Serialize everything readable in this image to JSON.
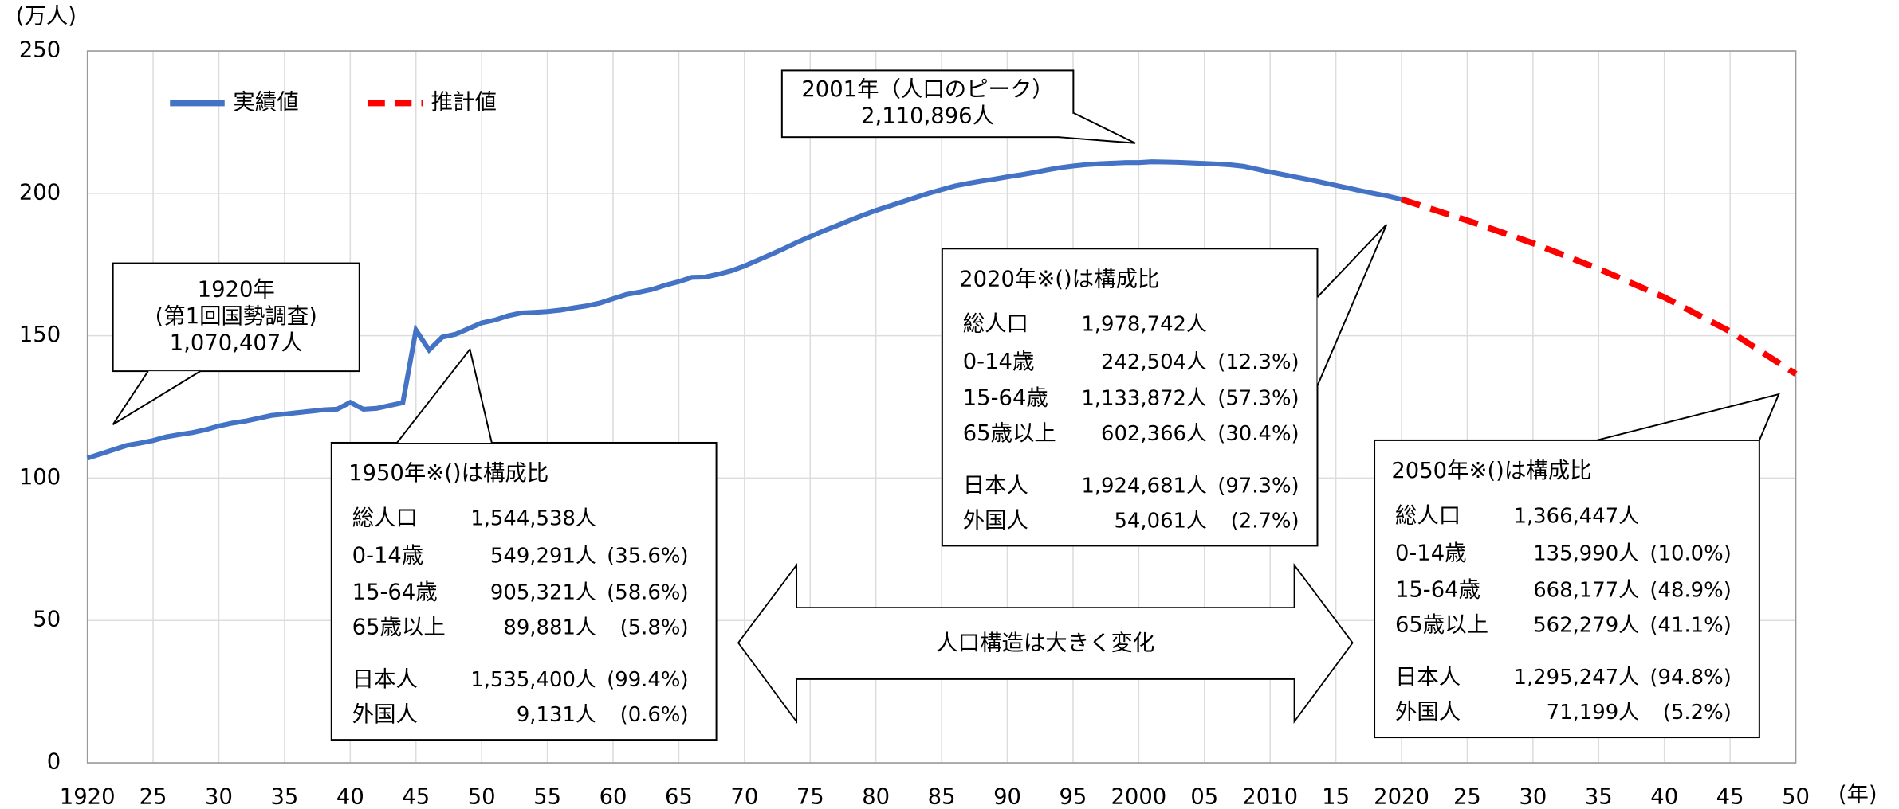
{
  "chart_data": {
    "type": "line",
    "x_label": "(年)",
    "y_label": "(万人)",
    "xlim": [
      1920,
      2050
    ],
    "ylim": [
      0,
      250
    ],
    "yticks": [
      0,
      50,
      100,
      150,
      200,
      250
    ],
    "xticks": [
      1920,
      {
        "value": 1925,
        "label": "25"
      },
      {
        "value": 1930,
        "label": "30"
      },
      {
        "value": 1935,
        "label": "35"
      },
      {
        "value": 1940,
        "label": "40"
      },
      {
        "value": 1945,
        "label": "45"
      },
      {
        "value": 1950,
        "label": "50"
      },
      {
        "value": 1955,
        "label": "55"
      },
      {
        "value": 1960,
        "label": "60"
      },
      {
        "value": 1965,
        "label": "65"
      },
      {
        "value": 1970,
        "label": "70"
      },
      {
        "value": 1975,
        "label": "75"
      },
      {
        "value": 1980,
        "label": "80"
      },
      {
        "value": 1985,
        "label": "85"
      },
      {
        "value": 1990,
        "label": "90"
      },
      {
        "value": 1995,
        "label": "95"
      },
      2000,
      {
        "value": 2005,
        "label": "05"
      },
      2010,
      {
        "value": 2015,
        "label": "15"
      },
      2020,
      {
        "value": 2025,
        "label": "25"
      },
      {
        "value": 2030,
        "label": "30"
      },
      {
        "value": 2035,
        "label": "35"
      },
      {
        "value": 2040,
        "label": "40"
      },
      {
        "value": 2045,
        "label": "45"
      },
      {
        "value": 2050,
        "label": "50"
      }
    ],
    "grid": true,
    "legend": "top-left",
    "series": [
      {
        "name": "実績値",
        "color": "#4472c4",
        "dash": false,
        "x": [
          1920,
          1921,
          1922,
          1923,
          1924,
          1925,
          1926,
          1927,
          1928,
          1929,
          1930,
          1931,
          1932,
          1933,
          1934,
          1935,
          1936,
          1937,
          1938,
          1939,
          1940,
          1941,
          1942,
          1943,
          1944,
          1945,
          1946,
          1947,
          1948,
          1949,
          1950,
          1951,
          1952,
          1953,
          1954,
          1955,
          1956,
          1957,
          1958,
          1959,
          1960,
          1961,
          1962,
          1963,
          1964,
          1965,
          1966,
          1967,
          1968,
          1969,
          1970,
          1971,
          1972,
          1973,
          1974,
          1975,
          1976,
          1977,
          1978,
          1979,
          1980,
          1981,
          1982,
          1983,
          1984,
          1985,
          1986,
          1987,
          1988,
          1989,
          1990,
          1991,
          1992,
          1993,
          1994,
          1995,
          1996,
          1997,
          1998,
          1999,
          2000,
          2001,
          2002,
          2003,
          2004,
          2005,
          2006,
          2007,
          2008,
          2009,
          2010,
          2011,
          2012,
          2013,
          2014,
          2015,
          2016,
          2017,
          2018,
          2019,
          2020
        ],
        "values": [
          107.0,
          108.5,
          110,
          111.5,
          112.3,
          113.2,
          114.5,
          115.3,
          116,
          117,
          118.3,
          119.3,
          120,
          121,
          122,
          122.5,
          123,
          123.5,
          124,
          124.2,
          126.6,
          124.2,
          124.5,
          125.5,
          126.5,
          152,
          145,
          149.5,
          150.5,
          152.5,
          154.5,
          155.5,
          157,
          158,
          158.2,
          158.5,
          159,
          159.8,
          160.5,
          161.5,
          163,
          164.5,
          165.3,
          166.3,
          167.8,
          169,
          170.5,
          170.6,
          171.6,
          172.8,
          174.5,
          176.5,
          178.5,
          180.6,
          182.8,
          184.8,
          186.8,
          188.6,
          190.5,
          192.3,
          194,
          195.5,
          197,
          198.5,
          200,
          201.3,
          202.6,
          203.5,
          204.3,
          205,
          205.8,
          206.5,
          207.3,
          208.2,
          209,
          209.6,
          210.1,
          210.4,
          210.6,
          210.8,
          210.8,
          211.1,
          211.0,
          210.9,
          210.7,
          210.5,
          210.3,
          210,
          209.5,
          208.5,
          207.5,
          206.6,
          205.7,
          204.8,
          203.8,
          202.8,
          201.8,
          200.8,
          199.9,
          199,
          197.9
        ]
      },
      {
        "name": "推計値",
        "color": "#ff0000",
        "dash": true,
        "x": [
          2020,
          2025,
          2030,
          2035,
          2040,
          2045,
          2050
        ],
        "values": [
          197.9,
          190.5,
          182.5,
          173.5,
          163.5,
          151.5,
          136.6
        ]
      }
    ],
    "annotations": [
      {
        "lines": [
          "1920年",
          "(第1回国勢調査)",
          "1,070,407人"
        ]
      },
      {
        "lines": [
          "2001年（人口のピーク）",
          "2,110,896人"
        ]
      },
      {
        "title": "1950年※()は構成比",
        "rows": [
          {
            "label": "総人口",
            "value": "1,544,538人"
          },
          {
            "label": "0-14歳",
            "value": "549,291人",
            "share": "(35.6%)"
          },
          {
            "label": "15-64歳",
            "value": "905,321人",
            "share": "(58.6%)"
          },
          {
            "label": "65歳以上",
            "value": "89,881人",
            "share": "(5.8%)"
          },
          {
            "label": "日本人",
            "value": "1,535,400人",
            "share": "(99.4%)"
          },
          {
            "label": "外国人",
            "value": "9,131人",
            "share": "(0.6%)"
          }
        ]
      },
      {
        "title": "2020年※()は構成比",
        "rows": [
          {
            "label": "総人口",
            "value": "1,978,742人"
          },
          {
            "label": "0-14歳",
            "value": "242,504人",
            "share": "(12.3%)"
          },
          {
            "label": "15-64歳",
            "value": "1,133,872人",
            "share": "(57.3%)"
          },
          {
            "label": "65歳以上",
            "value": "602,366人",
            "share": "(30.4%)"
          },
          {
            "label": "日本人",
            "value": "1,924,681人",
            "share": "(97.3%)"
          },
          {
            "label": "外国人",
            "value": "54,061人",
            "share": "(2.7%)"
          }
        ]
      },
      {
        "title": "2050年※()は構成比",
        "rows": [
          {
            "label": "総人口",
            "value": "1,366,447人"
          },
          {
            "label": "0-14歳",
            "value": "135,990人",
            "share": "(10.0%)"
          },
          {
            "label": "15-64歳",
            "value": "668,177人",
            "share": "(48.9%)"
          },
          {
            "label": "65歳以上",
            "value": "562,279人",
            "share": "(41.1%)"
          },
          {
            "label": "日本人",
            "value": "1,295,247人",
            "share": "(94.8%)"
          },
          {
            "label": "外国人",
            "value": "71,199人",
            "share": "(5.2%)"
          }
        ]
      },
      {
        "text": "人口構造は大きく変化"
      }
    ]
  }
}
